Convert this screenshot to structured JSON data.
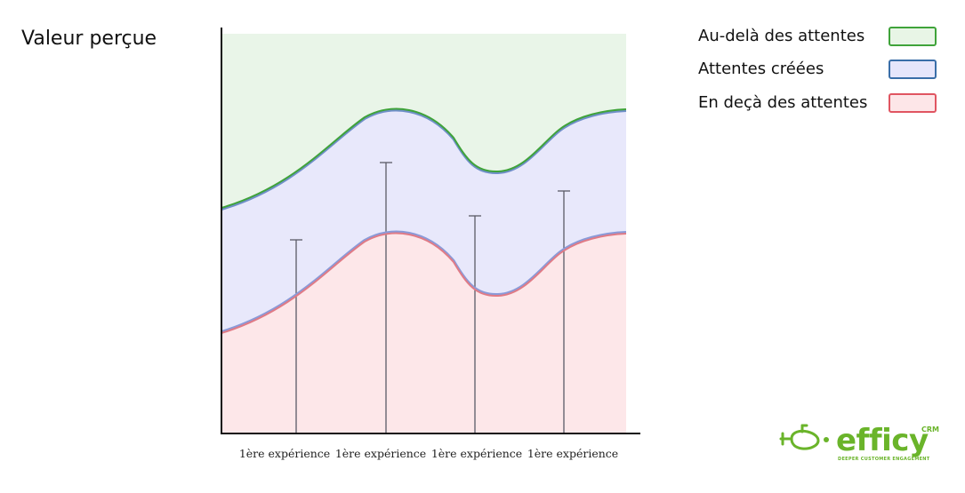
{
  "y_axis_label": "Valeur perçue",
  "x_ticks": [
    "1ère expérience",
    "1ère expérience",
    "1ère expérience",
    "1ère expérience"
  ],
  "legend": [
    {
      "label": "Au-delà des attentes",
      "fill": "#e8f5e6",
      "stroke": "#3fa33a"
    },
    {
      "label": "Attentes créées",
      "fill": "#e6e6fb",
      "stroke": "#3a6ea8"
    },
    {
      "label": "En deçà des attentes",
      "fill": "#fde6e8",
      "stroke": "#e05561"
    }
  ],
  "colors": {
    "above_fill": "#e9f5e8",
    "middle_fill": "#e8e8fb",
    "below_fill": "#fde7e9",
    "upper_curve": "#3fa33a",
    "lower_curve": "#e07b86",
    "curve_shadow": "#6f8fc8",
    "axis": "#111111",
    "error_bar": "#5a5a66"
  },
  "logo": {
    "name": "efficy",
    "badge": "CRM",
    "tagline": "DEEPER CUSTOMER ENGAGEMENT",
    "color": "#6ab42a",
    "icon": "submarine-icon"
  }
}
